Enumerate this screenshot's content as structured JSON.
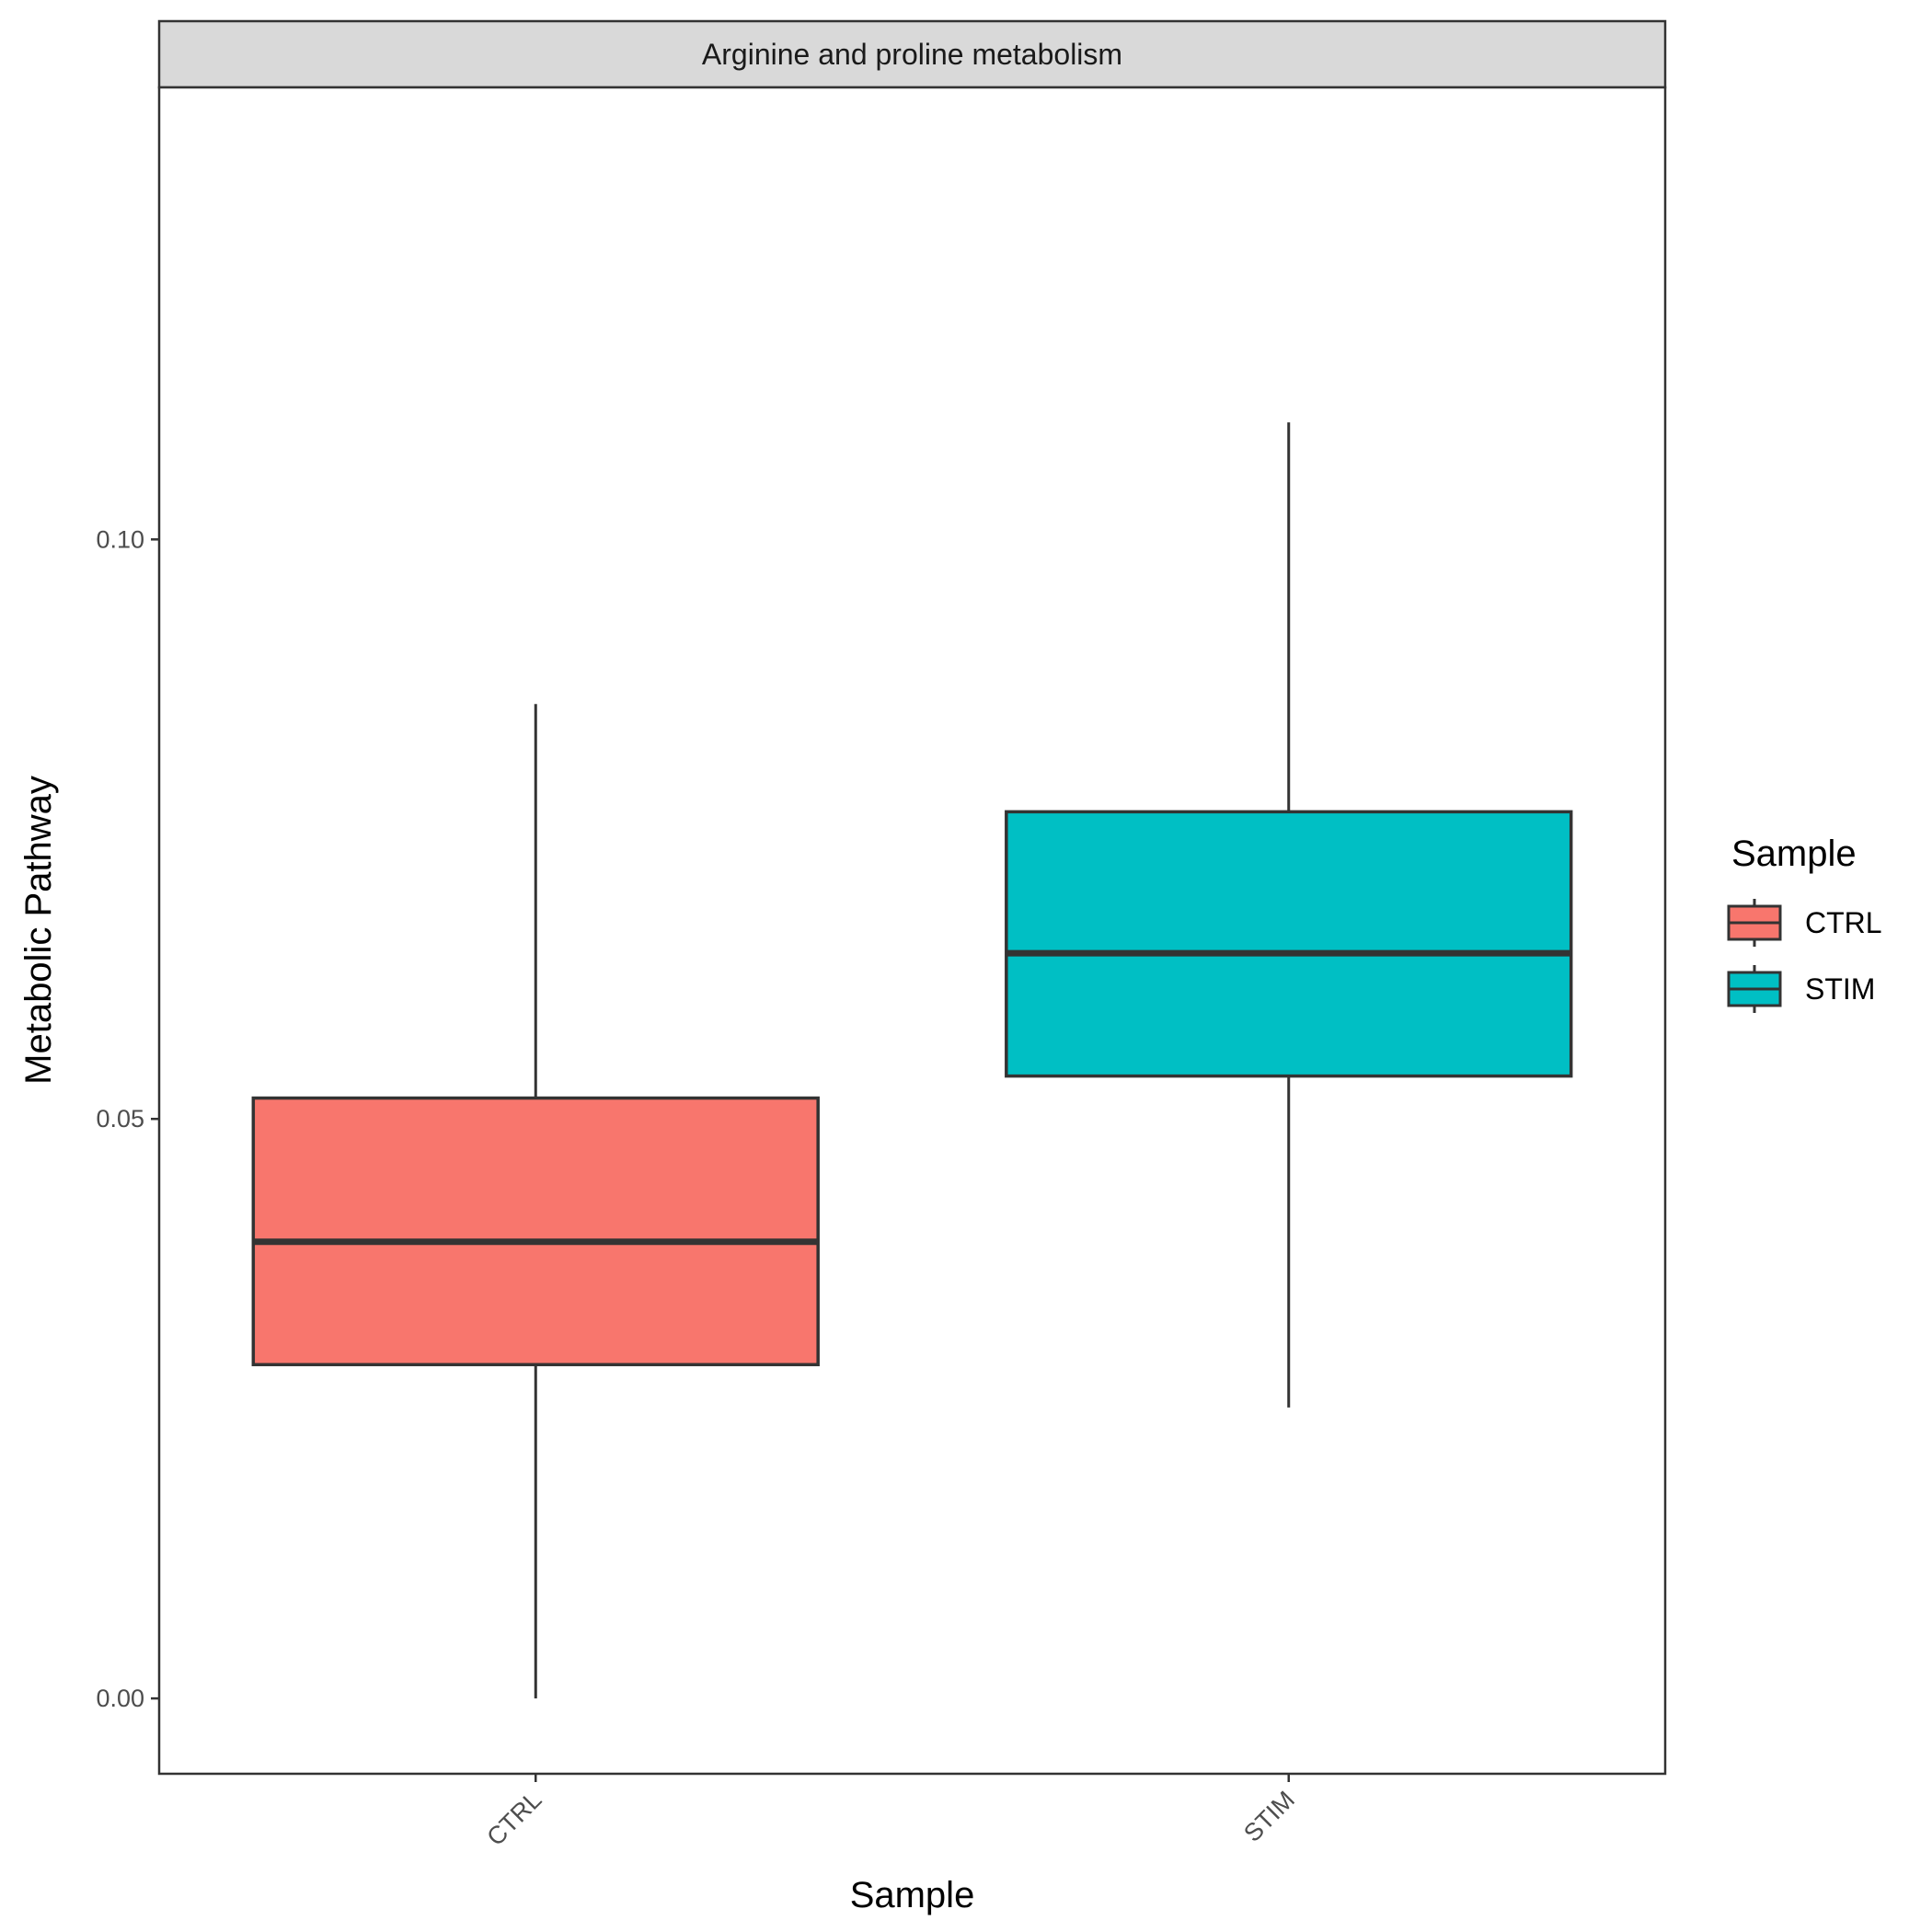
{
  "chart_data": {
    "type": "box",
    "facet_title": "Arginine and proline metabolism",
    "xlabel": "Sample",
    "ylabel": "Metabolic Pathway",
    "categories": [
      "CTRL",
      "STIM"
    ],
    "ylim": [
      -0.0065,
      0.139
    ],
    "yticks": [
      0.0,
      0.05,
      0.1
    ],
    "ytick_labels": [
      "0.00",
      "0.05",
      "0.10"
    ],
    "grid": false,
    "boxes": [
      {
        "name": "CTRL",
        "min": 0.0,
        "q1": 0.0288,
        "median": 0.0394,
        "q3": 0.0518,
        "max": 0.0858,
        "color": "#F8766D"
      },
      {
        "name": "STIM",
        "min": 0.0251,
        "q1": 0.0537,
        "median": 0.0643,
        "q3": 0.0765,
        "max": 0.1101,
        "color": "#00BFC4"
      }
    ],
    "legend": {
      "title": "Sample",
      "position": "right",
      "items": [
        {
          "label": "CTRL",
          "color": "#F8766D"
        },
        {
          "label": "STIM",
          "color": "#00BFC4"
        }
      ]
    }
  }
}
